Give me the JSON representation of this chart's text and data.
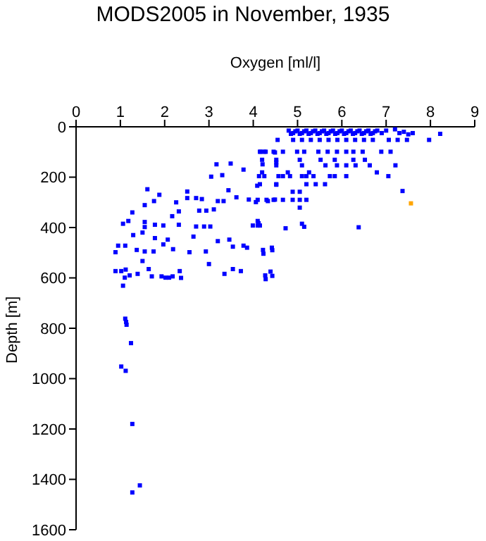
{
  "chart_data": {
    "type": "scatter",
    "title": "MODS2005 in November, 1935",
    "xlabel": "Oxygen [ml/l]",
    "ylabel": "Depth [m]",
    "xlim": [
      0,
      9
    ],
    "xticks": [
      0,
      1,
      2,
      3,
      4,
      5,
      6,
      7,
      8,
      9
    ],
    "ylim": [
      1600,
      0
    ],
    "yticks": [
      0,
      200,
      400,
      600,
      800,
      1000,
      1200,
      1400,
      1600
    ],
    "marker": "square",
    "series": [
      {
        "color": "#0000ff",
        "x": [
          1.06,
          1.11,
          1.13,
          1.14,
          1.24,
          1.02,
          1.12,
          1.27,
          1.44,
          1.27,
          0.89,
          1.02,
          1.12,
          1.1,
          1.21,
          1.39,
          1.64,
          1.71,
          1.93,
          2.02,
          2.1,
          2.18,
          2.34,
          2.37,
          3.35,
          3.54,
          3.72,
          4.27,
          4.39,
          4.55,
          4.17,
          4.28,
          4.49,
          3.17,
          3.49,
          3.78,
          4.21,
          4.52,
          3.05,
          3.3,
          4.13,
          4.52,
          4.09,
          1.61,
          2.51,
          1.88,
          1.76,
          2.51,
          2.26,
          2.71,
          2.84,
          3.2,
          3.33,
          3.44,
          3.62,
          3.9,
          4.06,
          4.33,
          4.49,
          1.55,
          1.27,
          2.32,
          2.17,
          2.78,
          2.94,
          3.11,
          1.06,
          1.18,
          1.55,
          1.78,
          1.97,
          2.32,
          2.71,
          2.89,
          3.03,
          1.55,
          1.29,
          1.5,
          1.78,
          2.07,
          1.97,
          2.65,
          3.2,
          3.46,
          3.99,
          4.12,
          0.89,
          0.95,
          1.11,
          1.37,
          1.55,
          1.75,
          2.19,
          2.56,
          2.93,
          3.54,
          3.78,
          3.86,
          4.22,
          4.42,
          1.5,
          3.0,
          4.8,
          4.9,
          5.0,
          5.1,
          5.2,
          5.3,
          5.4,
          5.5,
          5.6,
          5.7,
          5.8,
          5.9,
          6.0,
          6.1,
          6.2,
          6.3,
          6.4,
          6.5,
          6.6,
          6.7,
          6.8,
          6.9,
          4.85,
          4.95,
          5.05,
          5.15,
          5.25,
          5.35,
          5.45,
          5.55,
          5.65,
          5.75,
          5.85,
          5.95,
          6.05,
          6.15,
          6.25,
          6.35,
          6.45,
          6.55,
          6.65,
          6.75,
          7.0,
          7.2,
          7.3,
          7.4,
          7.5,
          7.6,
          8.22,
          7.97,
          7.47,
          7.26,
          7.06,
          4.9,
          5.1,
          5.3,
          5.5,
          5.7,
          5.9,
          6.1,
          6.3,
          6.5,
          6.7,
          4.15,
          4.25,
          4.46,
          4.67,
          4.99,
          5.15,
          5.47,
          5.68,
          5.89,
          6.1,
          6.26,
          6.47,
          6.89,
          7.1,
          4.2,
          4.52,
          5.05,
          5.52,
          5.84,
          6.26,
          6.52,
          4.52,
          5.1,
          5.63,
          5.89,
          6.1,
          6.31,
          6.63,
          7.21,
          4.2,
          4.78,
          5.26,
          6.79,
          4.25,
          4.57,
          4.67,
          4.83,
          5.1,
          5.2,
          5.36,
          5.73,
          5.84,
          6.1,
          7.05,
          4.15,
          4.52,
          5.2,
          5.41,
          5.62,
          4.89,
          5.05,
          7.37,
          4.1,
          4.3,
          4.46,
          4.67,
          4.89,
          5.05,
          5.2,
          5.05,
          4.1,
          4.1,
          4.15,
          4.73,
          5.1,
          5.15,
          6.38,
          4.23,
          4.43,
          4.28,
          4.43
        ],
        "values": [
          631,
          762,
          775,
          786,
          859,
          952,
          969,
          1180,
          1424,
          1452,
          573,
          573,
          567,
          599,
          590,
          584,
          565,
          594,
          594,
          599,
          599,
          594,
          573,
          600,
          584,
          565,
          573,
          590,
          575,
          52,
          99,
          99,
          102,
          149,
          146,
          170,
          149,
          141,
          198,
          192,
          196,
          230,
          234,
          248,
          257,
          270,
          295,
          283,
          300,
          283,
          287,
          295,
          295,
          252,
          280,
          289,
          299,
          295,
          289,
          311,
          340,
          336,
          355,
          333,
          333,
          328,
          385,
          374,
          378,
          389,
          392,
          389,
          396,
          396,
          396,
          398,
          430,
          420,
          442,
          448,
          467,
          436,
          454,
          448,
          392,
          383,
          498,
          472,
          472,
          489,
          495,
          495,
          486,
          498,
          495,
          476,
          472,
          480,
          489,
          480,
          533,
          545,
          15,
          25,
          15,
          25,
          15,
          25,
          15,
          25,
          15,
          25,
          15,
          25,
          15,
          25,
          15,
          25,
          15,
          25,
          15,
          25,
          15,
          25,
          28,
          18,
          28,
          18,
          28,
          18,
          28,
          18,
          28,
          18,
          28,
          18,
          28,
          18,
          28,
          18,
          28,
          18,
          28,
          18,
          15,
          10,
          25,
          20,
          30,
          25,
          28,
          52,
          52,
          52,
          52,
          52,
          52,
          52,
          52,
          52,
          52,
          52,
          52,
          52,
          52,
          99,
          99,
          99,
          99,
          99,
          99,
          99,
          99,
          99,
          99,
          99,
          99,
          99,
          99,
          131,
          131,
          131,
          131,
          131,
          131,
          131,
          153,
          153,
          153,
          153,
          153,
          153,
          153,
          153,
          181,
          181,
          181,
          181,
          196,
          196,
          196,
          196,
          196,
          196,
          196,
          196,
          196,
          196,
          196,
          228,
          228,
          228,
          228,
          228,
          258,
          258,
          255,
          290,
          290,
          290,
          290,
          290,
          290,
          290,
          321,
          374,
          392,
          392,
          403,
          385,
          397,
          399,
          504,
          490,
          605,
          592
        ]
      },
      {
        "color": "#ffa500",
        "x": [
          7.56
        ],
        "values": [
          304
        ]
      }
    ]
  }
}
